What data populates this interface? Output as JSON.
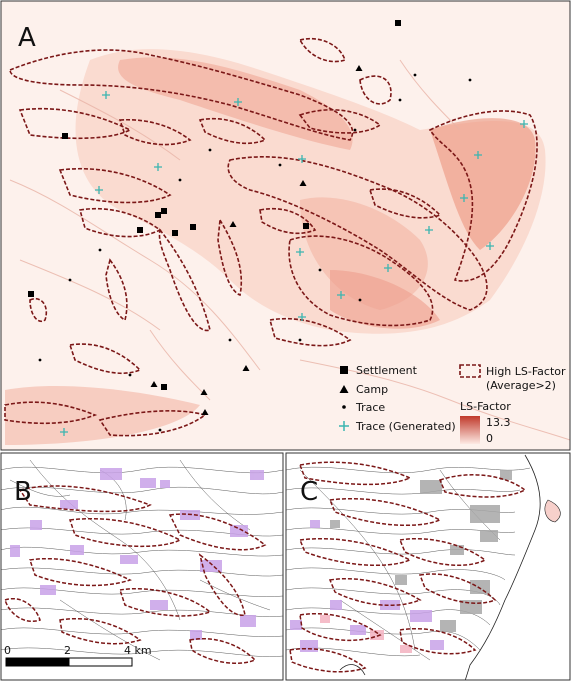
{
  "panels": {
    "a_label": "A",
    "b_label": "B",
    "c_label": "C"
  },
  "legend": {
    "settlement": "Settlement",
    "camp": "Camp",
    "trace": "Trace",
    "trace_generated": "Trace (Generated)",
    "high_ls_line1": "High LS-Factor",
    "high_ls_line2": "(Average>2)",
    "ls_title": "LS-Factor",
    "ls_max": "13.3",
    "ls_min": "0"
  },
  "scale_bar": {
    "tick_0": "0",
    "tick_2": "2",
    "tick_4": "4 km"
  },
  "colors": {
    "ls_high": "#c0392b",
    "ls_low": "#fde9e3",
    "outline": "#7b1717",
    "generated_trace": "#3bb5b0",
    "purple_patch": "#c8a2e8",
    "grey_patch": "#a8a8a8"
  },
  "icons": {
    "settlement": "square-marker",
    "camp": "triangle-marker",
    "trace": "dot-marker",
    "trace_generated": "cross-marker"
  }
}
